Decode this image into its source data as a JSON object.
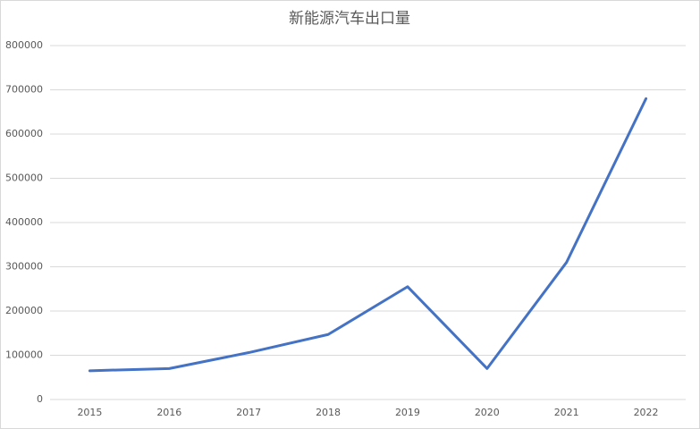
{
  "chart_data": {
    "type": "line",
    "title": "新能源汽车出口量",
    "categories": [
      "2015",
      "2016",
      "2017",
      "2018",
      "2019",
      "2020",
      "2021",
      "2022"
    ],
    "series": [
      {
        "name": "新能源汽车出口量",
        "color": "#4472c4",
        "values": [
          65000,
          70000,
          106000,
          147000,
          255000,
          70000,
          310000,
          680000
        ]
      }
    ],
    "ylim": [
      0,
      800000
    ],
    "yticks": [
      0,
      100000,
      200000,
      300000,
      400000,
      500000,
      600000,
      700000,
      800000
    ],
    "grid": true,
    "legend": false
  }
}
